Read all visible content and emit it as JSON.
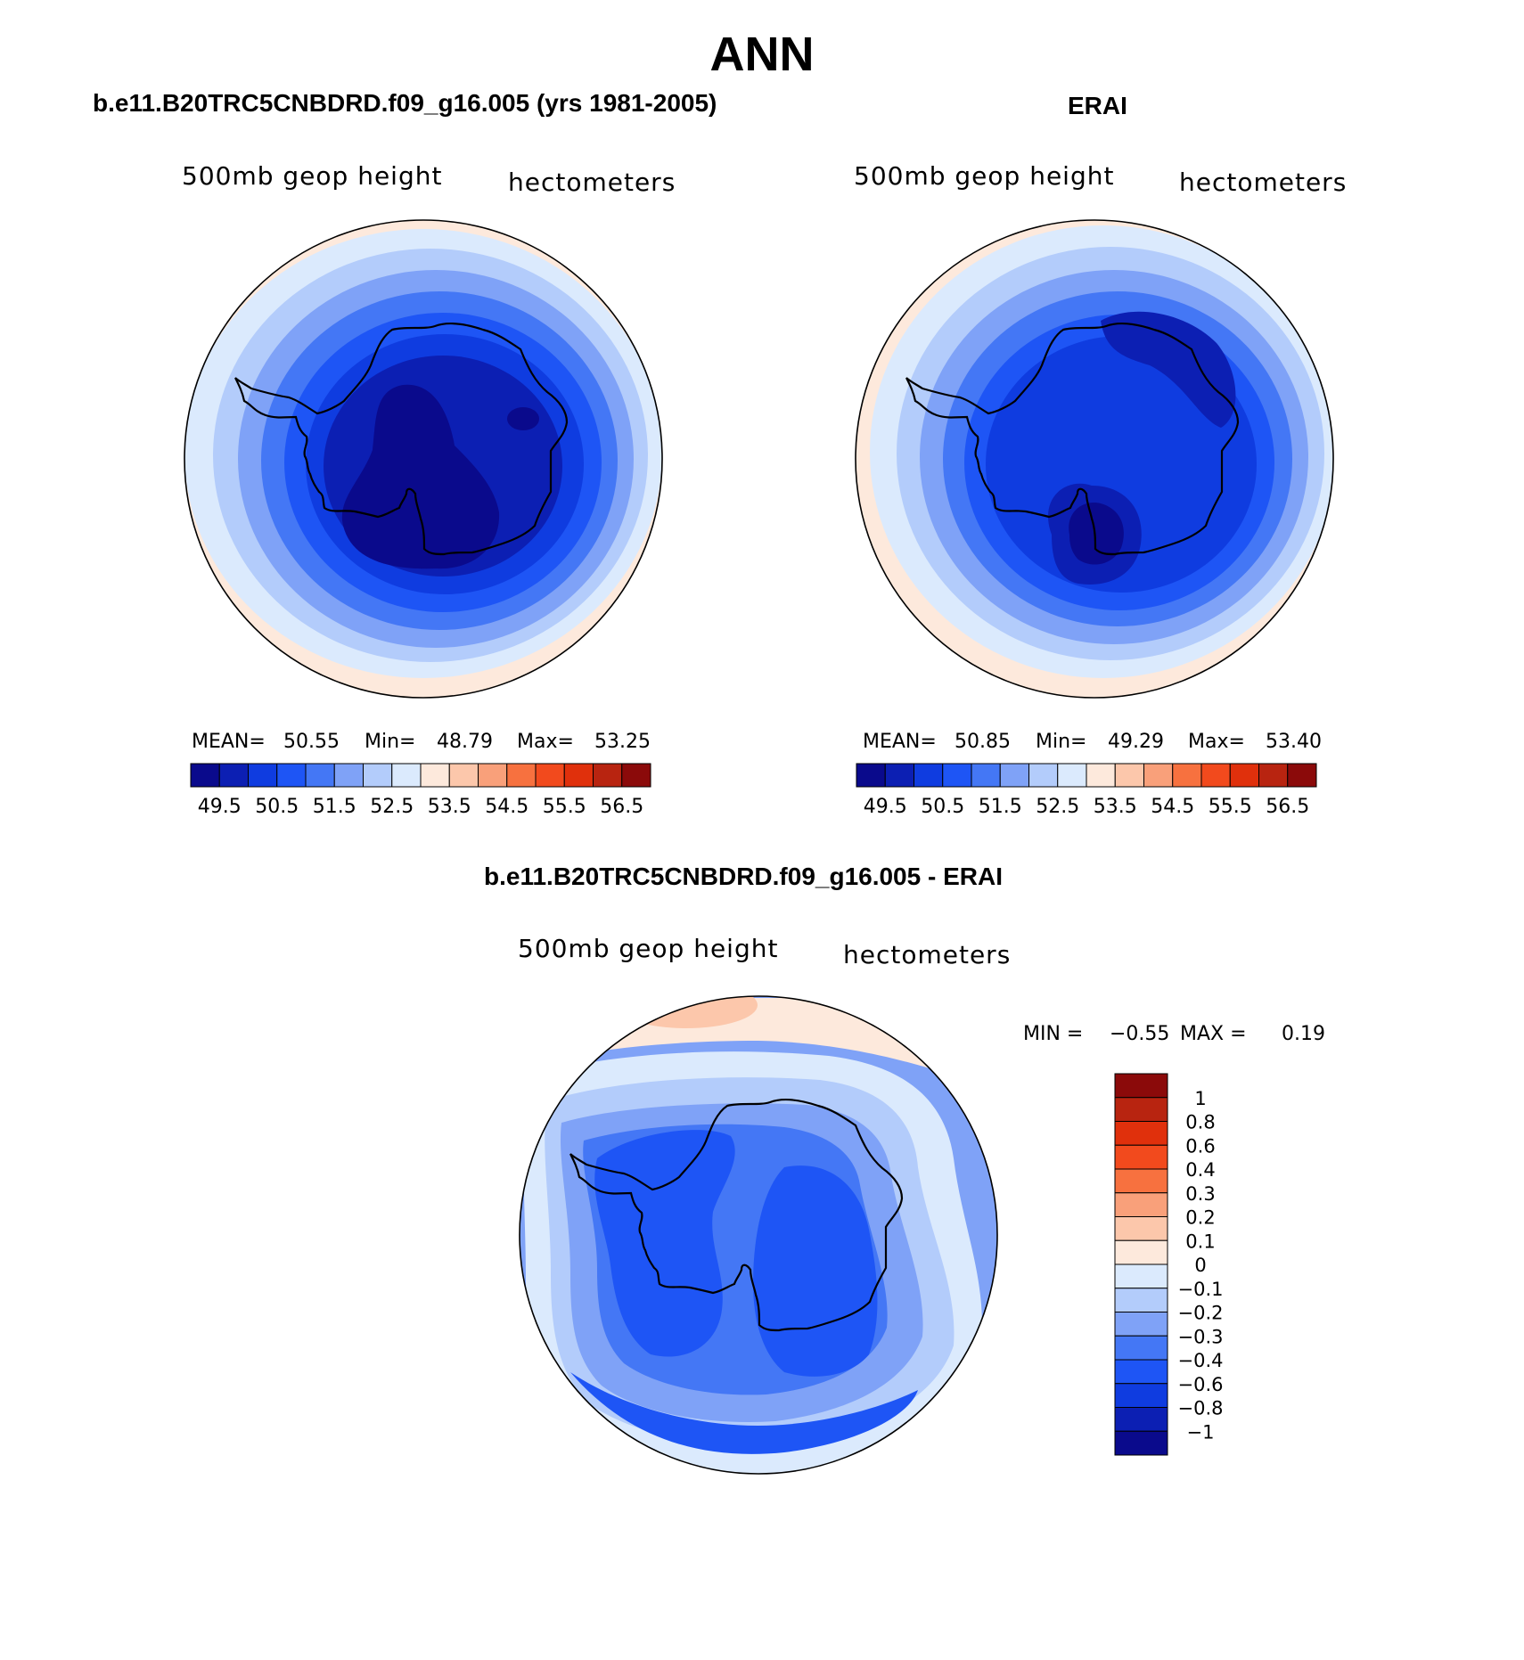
{
  "page": {
    "title": "ANN"
  },
  "panels": [
    {
      "id": "model",
      "title": "b.e11.B20TRC5CNBDRD.f09_g16.005 (yrs 1981-2005)",
      "variable": "500mb geop height",
      "units": "hectometers",
      "stats": {
        "mean_label": "MEAN=",
        "mean": "50.55",
        "min_label": "Min=",
        "min": "48.79",
        "max_label": "Max=",
        "max": "53.25"
      }
    },
    {
      "id": "obs",
      "title": "ERAI",
      "variable": "500mb geop height",
      "units": "hectometers",
      "stats": {
        "mean_label": "MEAN=",
        "mean": "50.85",
        "min_label": "Min=",
        "min": "49.29",
        "max_label": "Max=",
        "max": "53.40"
      }
    },
    {
      "id": "diff",
      "title": "b.e11.B20TRC5CNBDRD.f09_g16.005 - ERAI",
      "variable": "500mb geop height",
      "units": "hectometers",
      "stats": {
        "min_label": "MIN =",
        "min": "−0.55",
        "max_label": "MAX =",
        "max": "0.19"
      }
    }
  ],
  "colorbars": {
    "absolute": {
      "colors": [
        "#0a0a8c",
        "#0c1fb3",
        "#0f3ce0",
        "#1e55f5",
        "#4477f5",
        "#7fa2f7",
        "#b3ccfb",
        "#dbeafd",
        "#fde9dc",
        "#fcc7ab",
        "#f9a07a",
        "#f7713f",
        "#f24a1d",
        "#e0300c",
        "#b82410",
        "#8b0a0a"
      ],
      "tick_labels": [
        "49.5",
        "50.5",
        "51.5",
        "52.5",
        "53.5",
        "54.5",
        "55.5",
        "56.5"
      ]
    },
    "difference": {
      "colors_top_to_bottom": [
        "#8b0a0a",
        "#b82410",
        "#e0300c",
        "#f24a1d",
        "#f7713f",
        "#f9a07a",
        "#fcc7ab",
        "#fde9dc",
        "#dbeafd",
        "#b3ccfb",
        "#7fa2f7",
        "#4477f5",
        "#1e55f5",
        "#0f3ce0",
        "#0c1fb3",
        "#0a0a8c"
      ],
      "tick_labels_top_to_bottom": [
        "1",
        "0.8",
        "0.6",
        "0.4",
        "0.3",
        "0.2",
        "0.1",
        "0",
        "−0.1",
        "−0.2",
        "−0.3",
        "−0.4",
        "−0.6",
        "−0.8",
        "−1"
      ]
    }
  },
  "chart_data": [
    {
      "type": "heatmap",
      "title": "b.e11.B20TRC5CNBDRD.f09_g16.005 (yrs 1981-2005)",
      "field": "500mb geop height",
      "units": "hectometers",
      "projection": "south polar stereographic",
      "mean": 50.55,
      "min": 48.79,
      "max": 53.25,
      "contour_levels": [
        49.5,
        50,
        50.5,
        51,
        51.5,
        52,
        52.5,
        53,
        53.5,
        54,
        54.5,
        55,
        55.5,
        56,
        56.5
      ]
    },
    {
      "type": "heatmap",
      "title": "ERAI",
      "field": "500mb geop height",
      "units": "hectometers",
      "projection": "south polar stereographic",
      "mean": 50.85,
      "min": 49.29,
      "max": 53.4,
      "contour_levels": [
        49.5,
        50,
        50.5,
        51,
        51.5,
        52,
        52.5,
        53,
        53.5,
        54,
        54.5,
        55,
        55.5,
        56,
        56.5
      ]
    },
    {
      "type": "heatmap",
      "title": "b.e11.B20TRC5CNBDRD.f09_g16.005 - ERAI",
      "field": "500mb geop height",
      "units": "hectometers",
      "projection": "south polar stereographic",
      "min": -0.55,
      "max": 0.19,
      "contour_levels": [
        -1,
        -0.8,
        -0.6,
        -0.4,
        -0.3,
        -0.2,
        -0.1,
        0,
        0.1,
        0.2,
        0.3,
        0.4,
        0.6,
        0.8,
        1
      ]
    }
  ]
}
